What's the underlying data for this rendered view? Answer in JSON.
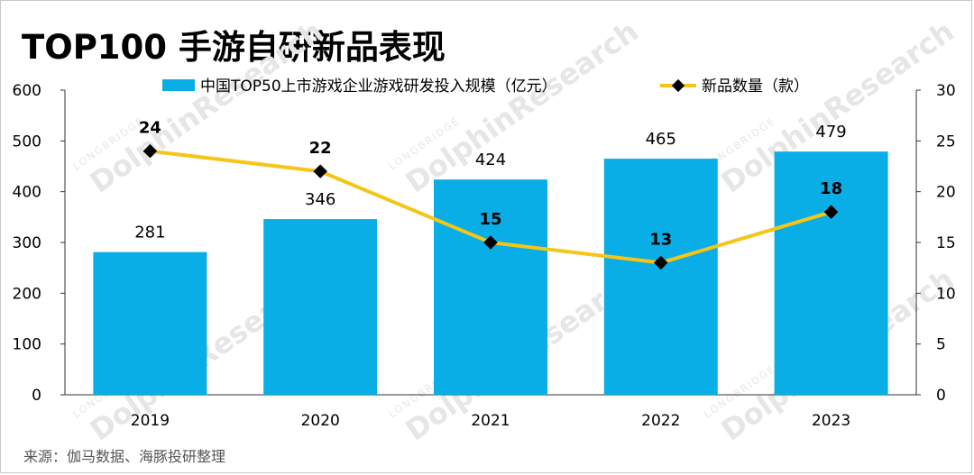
{
  "title": "TOP100 手游自研新品表现",
  "source": "来源：伽马数据、海豚投研整理",
  "watermark": {
    "main": "DolphinResearch",
    "sub": "LONGBRIDGE"
  },
  "colors": {
    "bar": "#0aaee6",
    "line": "#f5c518",
    "marker": "#000000"
  },
  "chart_data": {
    "type": "bar+line",
    "categories": [
      "2019",
      "2020",
      "2021",
      "2022",
      "2023"
    ],
    "series": [
      {
        "name": "中国TOP50上市游戏企业游戏研发投入规模（亿元）",
        "kind": "bar",
        "axis": "left",
        "values": [
          281,
          346,
          424,
          465,
          479
        ]
      },
      {
        "name": "新品数量（款）",
        "kind": "line",
        "axis": "right",
        "values": [
          24,
          22,
          15,
          13,
          18
        ]
      }
    ],
    "y_left": {
      "ylim": [
        0,
        600
      ],
      "ticks": [
        0,
        100,
        200,
        300,
        400,
        500,
        600
      ]
    },
    "y_right": {
      "ylim": [
        0,
        30
      ],
      "ticks": [
        0,
        5,
        10,
        15,
        20,
        25,
        30
      ]
    },
    "legend_placement": "top"
  }
}
